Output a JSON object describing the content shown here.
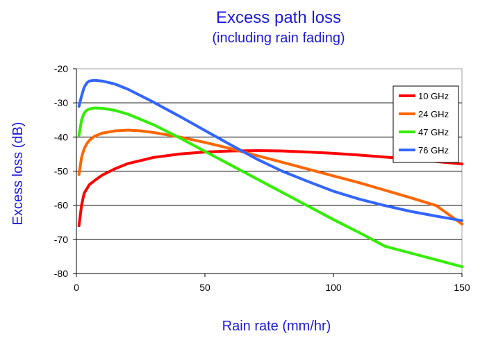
{
  "chart_data": {
    "type": "line",
    "title": "Excess path loss",
    "subtitle": "(including rain fading)",
    "xlabel": "Rain rate (mm/hr)",
    "ylabel": "Excess loss (dB)",
    "xlim": [
      0,
      150
    ],
    "ylim": [
      -80,
      -20
    ],
    "x_ticks": [
      0,
      50,
      100,
      150
    ],
    "y_ticks": [
      -20,
      -30,
      -40,
      -50,
      -60,
      -70,
      -80
    ],
    "grid": "horizontal",
    "legend_position": "top-right",
    "series": [
      {
        "name": "10 GHz",
        "color": "#ff0000",
        "x": [
          1,
          2,
          3,
          5,
          7,
          10,
          15,
          20,
          30,
          40,
          50,
          60,
          70,
          80,
          90,
          100,
          110,
          120,
          130,
          140,
          150
        ],
        "y": [
          -66,
          -60,
          -56.5,
          -54,
          -52.8,
          -51.2,
          -49.3,
          -47.8,
          -46,
          -45,
          -44.4,
          -44.1,
          -44.0,
          -44.1,
          -44.4,
          -44.8,
          -45.3,
          -45.9,
          -46.5,
          -47.2,
          -47.9
        ]
      },
      {
        "name": "24 GHz",
        "color": "#ff6600",
        "x": [
          1,
          2,
          3,
          4,
          5,
          7,
          10,
          15,
          20,
          25,
          30,
          40,
          50,
          60,
          70,
          80,
          90,
          100,
          110,
          120,
          130,
          140,
          150
        ],
        "y": [
          -51,
          -46,
          -43.5,
          -42,
          -41,
          -39.8,
          -38.9,
          -38.2,
          -38.0,
          -38.2,
          -38.7,
          -40,
          -41.6,
          -43.4,
          -45.4,
          -47.4,
          -49.4,
          -51.4,
          -53.4,
          -55.6,
          -57.8,
          -60.1,
          -65.5
        ]
      },
      {
        "name": "47 GHz",
        "color": "#33ee00",
        "x": [
          1,
          2,
          3,
          4,
          5,
          7,
          10,
          15,
          20,
          30,
          40,
          50,
          60,
          70,
          80,
          90,
          100,
          110,
          120,
          130,
          140,
          150
        ],
        "y": [
          -39.5,
          -35,
          -33,
          -32.2,
          -31.8,
          -31.5,
          -31.6,
          -32.2,
          -33.3,
          -36.4,
          -40.2,
          -44.2,
          -48.2,
          -52.2,
          -56.2,
          -60.2,
          -64.2,
          -68,
          -72,
          -74,
          -76,
          -78
        ]
      },
      {
        "name": "76 GHz",
        "color": "#3366ff",
        "x": [
          1,
          2,
          3,
          4,
          5,
          7,
          10,
          15,
          20,
          30,
          40,
          50,
          60,
          70,
          80,
          90,
          100,
          110,
          120,
          130,
          140,
          150
        ],
        "y": [
          -31,
          -28,
          -25.5,
          -24.2,
          -23.6,
          -23.4,
          -23.6,
          -24.5,
          -26,
          -29.8,
          -33.9,
          -38.1,
          -42.3,
          -46.4,
          -50,
          -53,
          -55.9,
          -58.2,
          -60.1,
          -61.8,
          -63.2,
          -64.5
        ]
      }
    ]
  }
}
